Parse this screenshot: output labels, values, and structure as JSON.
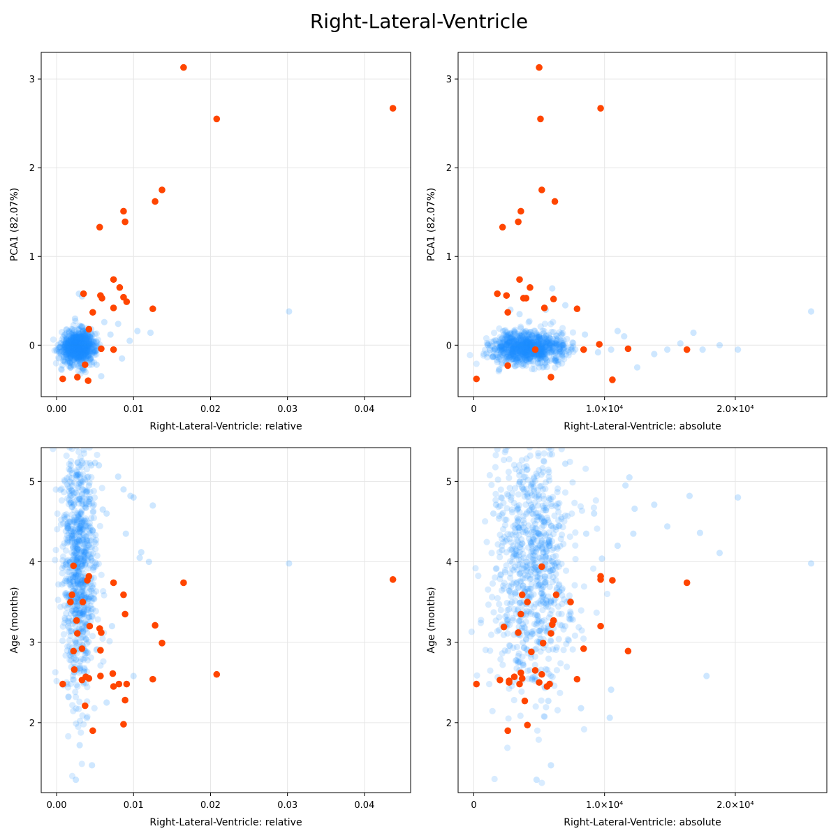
{
  "title": "Right-Lateral-Ventricle",
  "colors": {
    "background": "#1e90ff",
    "highlight": "#ff4500",
    "grid": "#e6e6e6",
    "frame": "#000000"
  },
  "chart_data": [
    {
      "type": "scatter",
      "xlabel": "Right-Lateral-Ventricle: relative",
      "ylabel": "PCA1 (82.07%)",
      "xlim": [
        -0.002,
        0.046
      ],
      "ylim": [
        -0.58,
        3.3
      ],
      "xticks": [
        0.0,
        0.01,
        0.02,
        0.03,
        0.04
      ],
      "xticklabels": [
        "0.00",
        "0.01",
        "0.02",
        "0.03",
        "0.04"
      ],
      "yticks": [
        0,
        1,
        2,
        3
      ],
      "yticklabels": [
        "0",
        "1",
        "2",
        "3"
      ],
      "grid": true,
      "background_cloud": {
        "x_center": 0.0028,
        "x_spread": 0.0011,
        "y_center": -0.02,
        "y_spread": 0.09,
        "count": 900
      },
      "series": [
        {
          "role": "background",
          "x": [
            0.003,
            0.0045,
            0.0062,
            0.008,
            0.0095,
            0.0105,
            0.0122,
            0.0018,
            0.001,
            0.0024,
            0.0036,
            0.0052,
            0.007,
            0.0085,
            0.0005,
            0.0302,
            0.0029,
            0.0033,
            0.0041,
            0.0058
          ],
          "y": [
            0.22,
            0.18,
            0.26,
            0.24,
            0.05,
            0.16,
            0.14,
            -0.25,
            -0.18,
            0.3,
            -0.28,
            -0.22,
            0.12,
            -0.15,
            -0.02,
            0.38,
            0.58,
            0.55,
            0.12,
            -0.35
          ]
        },
        {
          "role": "highlight",
          "x": [
            0.0165,
            0.0208,
            0.0437,
            0.0137,
            0.0128,
            0.0087,
            0.0089,
            0.0056,
            0.0035,
            0.0057,
            0.0059,
            0.0074,
            0.0082,
            0.0087,
            0.0091,
            0.0125,
            0.0074,
            0.0047,
            0.0042,
            0.0037,
            0.0058,
            0.0074,
            0.0008,
            0.0027,
            0.0041
          ],
          "y": [
            3.13,
            2.55,
            2.67,
            1.75,
            1.62,
            1.51,
            1.39,
            1.33,
            0.58,
            0.56,
            0.53,
            0.74,
            0.65,
            0.54,
            0.49,
            0.41,
            0.42,
            0.37,
            0.18,
            -0.22,
            -0.04,
            -0.05,
            -0.38,
            -0.36,
            -0.4
          ]
        }
      ]
    },
    {
      "type": "scatter",
      "xlabel": "Right-Lateral-Ventricle: absolute",
      "ylabel": "PCA1 (82.07%)",
      "xlim": [
        -1200,
        27000
      ],
      "ylim": [
        -0.58,
        3.3
      ],
      "xticks": [
        0,
        10000,
        20000
      ],
      "xticklabels": [
        "0",
        "1.0×10⁴",
        "2.0×10⁴"
      ],
      "yticks": [
        0,
        1,
        2,
        3
      ],
      "yticklabels": [
        "0",
        "1",
        "2",
        "3"
      ],
      "grid": true,
      "background_cloud": {
        "x_center": 4200,
        "x_spread": 1400,
        "y_center": -0.03,
        "y_spread": 0.09,
        "count": 900
      },
      "series": [
        {
          "role": "background",
          "x": [
            8500,
            9500,
            10500,
            11500,
            12500,
            13800,
            14800,
            15800,
            16800,
            17500,
            18800,
            20200,
            25800,
            6000,
            2800,
            2000,
            3500,
            7000,
            11000,
            5500
          ],
          "y": [
            0.12,
            -0.08,
            -0.05,
            0.1,
            -0.25,
            -0.1,
            -0.05,
            0.02,
            0.14,
            -0.05,
            0.0,
            -0.05,
            0.38,
            0.64,
            0.4,
            -0.05,
            0.35,
            0.45,
            0.16,
            0.4
          ]
        },
        {
          "role": "highlight",
          "x": [
            5000,
            5100,
            9700,
            5200,
            6200,
            3600,
            3400,
            2200,
            1800,
            2500,
            3800,
            4000,
            3500,
            4300,
            5400,
            6100,
            7900,
            2600,
            5900,
            4700,
            8400,
            11800,
            16300,
            9600,
            200,
            10600,
            2600
          ],
          "y": [
            3.13,
            2.55,
            2.67,
            1.75,
            1.62,
            1.51,
            1.39,
            1.33,
            0.58,
            0.56,
            0.53,
            0.53,
            0.74,
            0.65,
            0.42,
            0.52,
            0.41,
            0.37,
            -0.36,
            -0.05,
            -0.05,
            -0.04,
            -0.05,
            0.01,
            -0.38,
            -0.39,
            -0.23
          ]
        }
      ]
    },
    {
      "type": "scatter",
      "xlabel": "Right-Lateral-Ventricle: relative",
      "ylabel": "Age (months)",
      "xlim": [
        -0.002,
        0.046
      ],
      "ylim": [
        1.13,
        5.42
      ],
      "xticks": [
        0.0,
        0.01,
        0.02,
        0.03,
        0.04
      ],
      "xticklabels": [
        "0.00",
        "0.01",
        "0.02",
        "0.03",
        "0.04"
      ],
      "yticks": [
        2,
        3,
        4,
        5
      ],
      "yticklabels": [
        "2",
        "3",
        "4",
        "5"
      ],
      "grid": true,
      "background_cloud": {
        "x_center": 0.0028,
        "x_spread": 0.0011,
        "y_center": 3.9,
        "y_spread": 0.85,
        "count": 850
      },
      "series": [
        {
          "role": "background",
          "x": [
            0.0302,
            0.01,
            0.0125,
            0.0108,
            0.012,
            0.0096,
            0.0087,
            0.008,
            0.0065,
            0.006,
            0.0055,
            0.005,
            0.0045,
            0.0042,
            0.003,
            0.0025,
            0.0046,
            0.009,
            0.0072,
            0.01,
            0.011,
            0.0065
          ],
          "y": [
            3.98,
            4.8,
            4.7,
            4.05,
            4.0,
            4.82,
            4.9,
            5.06,
            4.6,
            4.65,
            5.2,
            5.23,
            5.2,
            4.95,
            1.72,
            1.29,
            1.47,
            4.35,
            3.2,
            2.58,
            4.12,
            2.25
          ]
        },
        {
          "role": "highlight",
          "x": [
            0.0165,
            0.0437,
            0.0208,
            0.0128,
            0.0137,
            0.0125,
            0.0087,
            0.0089,
            0.0074,
            0.004,
            0.0042,
            0.0022,
            0.002,
            0.0034,
            0.0026,
            0.0043,
            0.0056,
            0.0058,
            0.0033,
            0.0027,
            0.0022,
            0.0023,
            0.0018,
            0.0038,
            0.0042,
            0.0033,
            0.0057,
            0.0057,
            0.0073,
            0.0074,
            0.0081,
            0.0091,
            0.0089,
            0.0008,
            0.0037,
            0.0047,
            0.0087
          ],
          "y": [
            3.74,
            3.78,
            2.6,
            3.21,
            2.99,
            2.54,
            3.59,
            3.35,
            3.74,
            3.77,
            3.82,
            3.95,
            3.59,
            3.5,
            3.27,
            3.2,
            3.17,
            3.12,
            2.92,
            3.11,
            2.89,
            2.66,
            3.5,
            2.57,
            2.55,
            2.53,
            2.58,
            2.9,
            2.61,
            2.45,
            2.48,
            2.48,
            2.28,
            2.48,
            2.21,
            1.9,
            1.98
          ]
        }
      ]
    },
    {
      "type": "scatter",
      "xlabel": "Right-Lateral-Ventricle: absolute",
      "ylabel": "Age (months)",
      "xlim": [
        -1200,
        27000
      ],
      "ylim": [
        1.13,
        5.42
      ],
      "xticks": [
        0,
        10000,
        20000
      ],
      "xticklabels": [
        "0",
        "1.0×10⁴",
        "2.0×10⁴"
      ],
      "yticks": [
        2,
        3,
        4,
        5
      ],
      "yticklabels": [
        "2",
        "3",
        "4",
        "5"
      ],
      "grid": true,
      "background_cloud": {
        "x_center": 4500,
        "x_spread": 1600,
        "y_center": 3.95,
        "y_spread": 0.85,
        "count": 850
      },
      "series": [
        {
          "role": "background",
          "x": [
            25800,
            20200,
            16500,
            17300,
            18800,
            17800,
            14800,
            13800,
            12300,
            11600,
            11900,
            12200,
            10400,
            10500,
            9800,
            9200,
            8600,
            6500,
            7000,
            5900,
            4800,
            5700,
            1700,
            1500,
            3800,
            8200,
            11000
          ],
          "y": [
            3.98,
            4.8,
            4.82,
            4.36,
            4.11,
            2.58,
            4.44,
            4.71,
            4.66,
            4.95,
            5.05,
            4.35,
            2.06,
            2.41,
            4.04,
            4.6,
            4.35,
            4.45,
            5.22,
            1.47,
            1.29,
            2.27,
            4.71,
            4.6,
            4.9,
            2.18,
            4.2
          ]
        },
        {
          "role": "highlight",
          "x": [
            16300,
            9700,
            9700,
            10600,
            11800,
            7400,
            6300,
            5200,
            3700,
            3600,
            3400,
            5300,
            4100,
            6100,
            6000,
            5900,
            2300,
            2000,
            3100,
            4400,
            4700,
            5200,
            3600,
            3700,
            2700,
            2700,
            3500,
            8400,
            9700,
            7900,
            5000,
            5600,
            5800,
            3900,
            4100,
            2600,
            200
          ],
          "y": [
            3.74,
            3.82,
            3.78,
            3.77,
            2.89,
            3.5,
            3.59,
            3.94,
            3.59,
            3.35,
            3.12,
            2.99,
            3.5,
            3.27,
            3.22,
            3.11,
            3.19,
            2.53,
            2.57,
            2.88,
            2.65,
            2.6,
            2.62,
            2.55,
            2.5,
            2.52,
            2.48,
            2.92,
            3.2,
            2.54,
            2.5,
            2.45,
            2.48,
            2.27,
            1.97,
            1.9,
            2.48
          ]
        }
      ]
    }
  ]
}
